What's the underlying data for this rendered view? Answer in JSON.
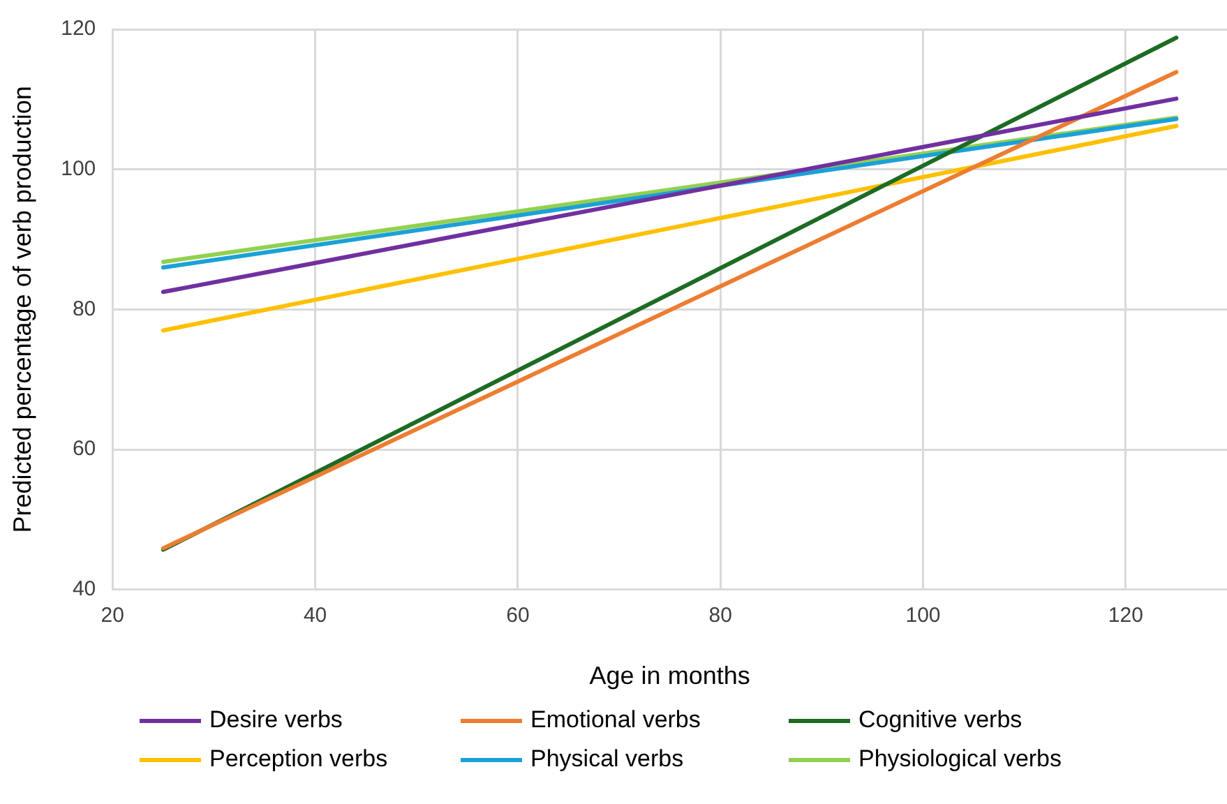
{
  "chart_data": {
    "type": "line",
    "xlabel": "Age in months",
    "ylabel": "Predicted percentage of verb production",
    "xlim": [
      20,
      130
    ],
    "xticks": [
      20,
      40,
      60,
      80,
      100,
      120
    ],
    "ylim": [
      40,
      120
    ],
    "yticks": [
      40,
      60,
      80,
      100,
      120
    ],
    "grid": true,
    "legend": "bottom",
    "marker": "none",
    "line_style": "solid",
    "x": [
      25,
      125
    ],
    "series": [
      {
        "name": "Desire verbs",
        "color": "#7030a0",
        "values": [
          82.5,
          110.1
        ]
      },
      {
        "name": "Emotional verbs",
        "color": "#ed7d31",
        "values": [
          45.9,
          113.9
        ]
      },
      {
        "name": "Cognitive verbs",
        "color": "#1e6b24",
        "values": [
          45.7,
          118.8
        ]
      },
      {
        "name": "Perception verbs",
        "color": "#ffc000",
        "values": [
          77.0,
          106.2
        ]
      },
      {
        "name": "Physical verbs",
        "color": "#1ba1d8",
        "values": [
          86.0,
          107.2
        ]
      },
      {
        "name": "Physiological verbs",
        "color": "#92d050",
        "values": [
          86.8,
          107.4
        ]
      }
    ]
  }
}
